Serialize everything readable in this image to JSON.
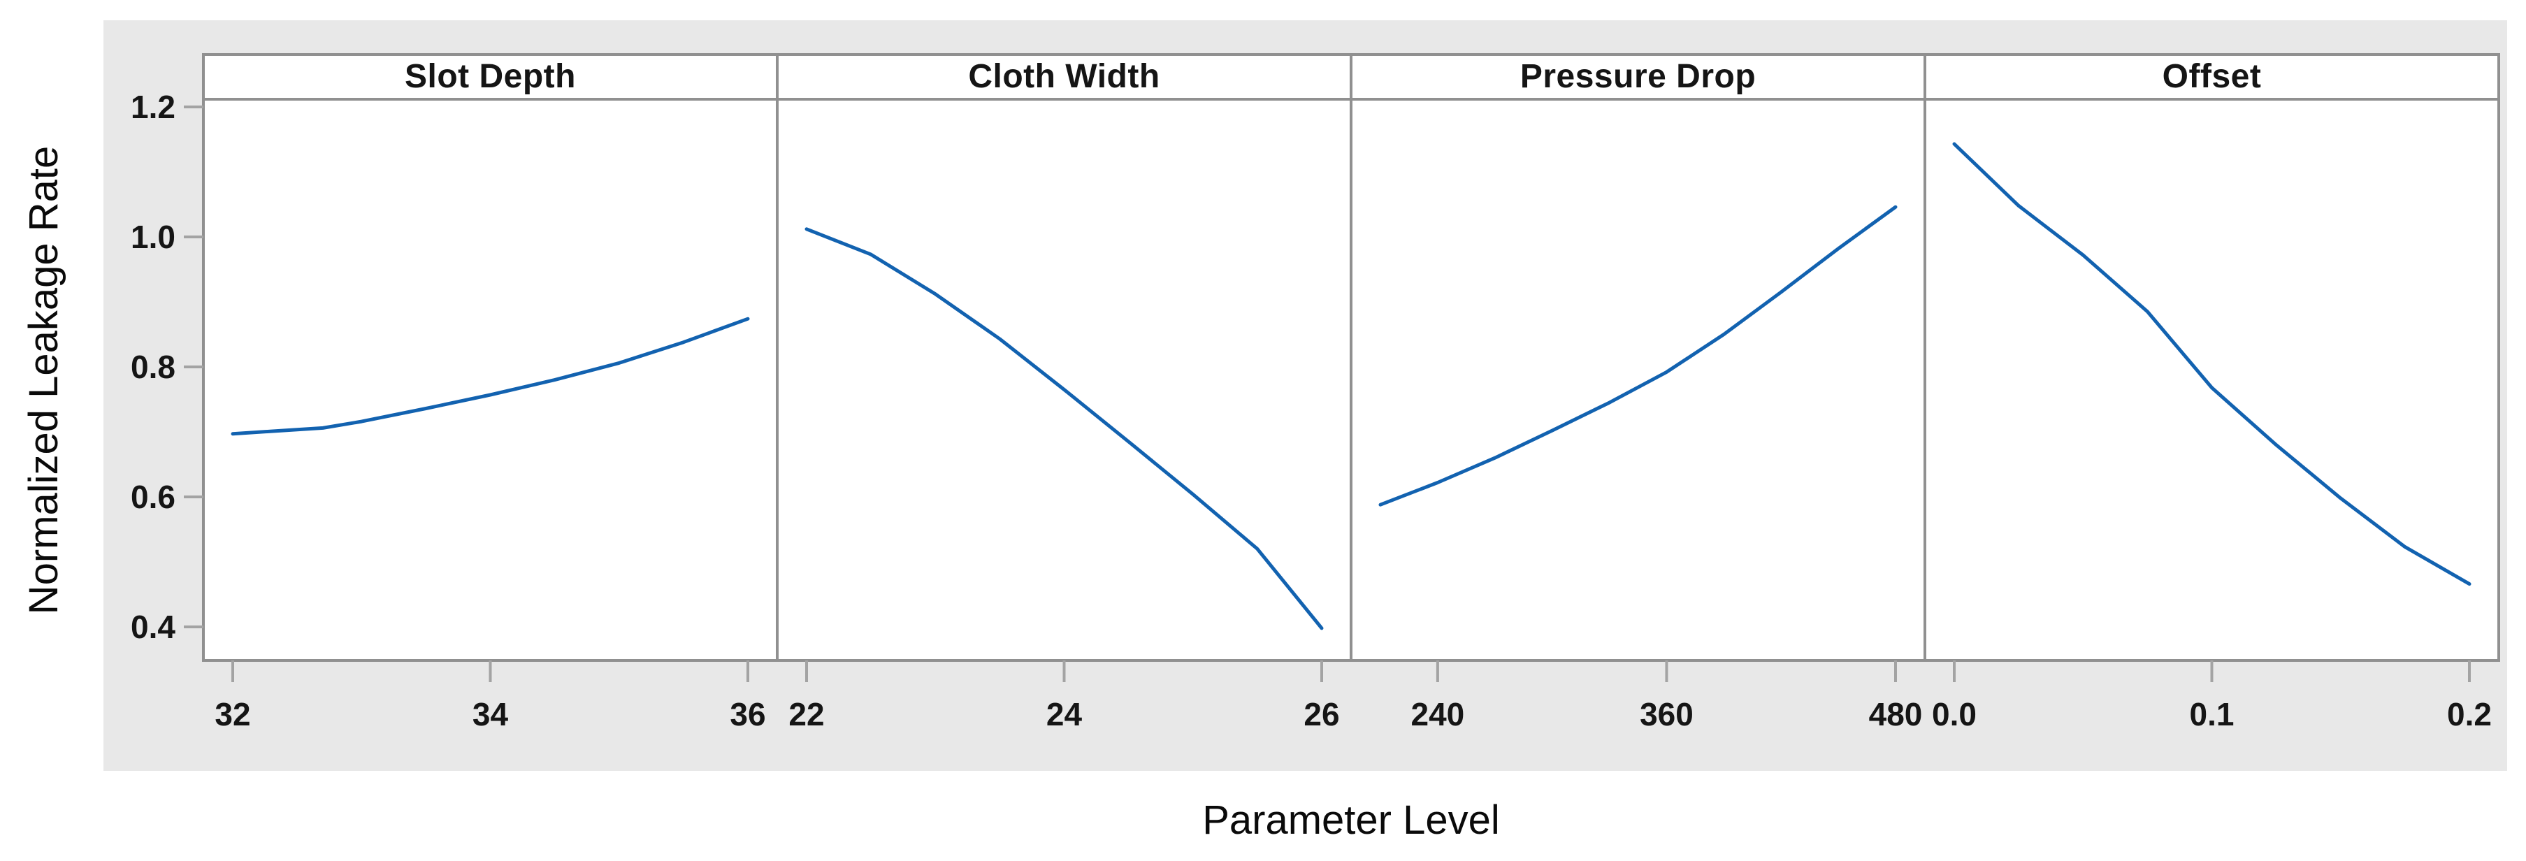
{
  "figure": {
    "kind": "main-effects-plot",
    "x_axis_label": "Parameter Level",
    "y_axis_label": "Normalized Leakage Rate"
  },
  "colors": {
    "line": "#1262b0",
    "band_background": "#e8e8e8",
    "panel_background": "#ffffff",
    "border": "#909090",
    "tick_mark": "#a3a3a3",
    "text": "#151515"
  },
  "chart_data": {
    "type": "line",
    "subtype": "main-effects-plot-4-panels",
    "title": "",
    "xlabel": "Parameter Level",
    "ylabel": "Normalized Leakage Rate",
    "ylim": [
      0.348,
      1.212
    ],
    "grid": "off",
    "legend": "none",
    "y_ticks": [
      {
        "label": "1.2",
        "value": 1.2
      },
      {
        "label": "1.0",
        "value": 1.0
      },
      {
        "label": "0.8",
        "value": 0.8
      },
      {
        "label": "0.6",
        "value": 0.6
      },
      {
        "label": "0.4",
        "value": 0.4
      }
    ],
    "panels": [
      {
        "title": "Slot Depth",
        "x_range": [
          32,
          36
        ],
        "x_ticks": [
          {
            "label": "32",
            "value": 32
          },
          {
            "label": "34",
            "value": 34
          },
          {
            "label": "36",
            "value": 36
          }
        ],
        "points": [
          [
            32,
            0.697
          ],
          [
            32.3,
            0.701
          ],
          [
            32.7,
            0.706
          ],
          [
            33,
            0.716
          ],
          [
            33.5,
            0.736
          ],
          [
            34,
            0.757
          ],
          [
            34.5,
            0.78
          ],
          [
            35,
            0.806
          ],
          [
            35.5,
            0.838
          ],
          [
            36,
            0.874
          ]
        ]
      },
      {
        "title": "Cloth Width",
        "x_range": [
          22,
          26
        ],
        "x_ticks": [
          {
            "label": "22",
            "value": 22
          },
          {
            "label": "24",
            "value": 24
          },
          {
            "label": "26",
            "value": 26
          }
        ],
        "points": [
          [
            22,
            1.012
          ],
          [
            22.5,
            0.973
          ],
          [
            23,
            0.912
          ],
          [
            23.5,
            0.843
          ],
          [
            24,
            0.765
          ],
          [
            24.5,
            0.685
          ],
          [
            25,
            0.604
          ],
          [
            25.5,
            0.52
          ],
          [
            26,
            0.398
          ]
        ]
      },
      {
        "title": "Pressure Drop",
        "x_range": [
          210,
          480
        ],
        "x_ticks": [
          {
            "label": "240",
            "value": 240
          },
          {
            "label": "360",
            "value": 360
          },
          {
            "label": "480",
            "value": 480
          }
        ],
        "points": [
          [
            210,
            0.588
          ],
          [
            240,
            0.622
          ],
          [
            270,
            0.66
          ],
          [
            300,
            0.702
          ],
          [
            330,
            0.745
          ],
          [
            360,
            0.792
          ],
          [
            390,
            0.85
          ],
          [
            420,
            0.915
          ],
          [
            450,
            0.982
          ],
          [
            480,
            1.046
          ]
        ]
      },
      {
        "title": "Offset",
        "x_range": [
          0,
          0.2
        ],
        "x_ticks": [
          {
            "label": "0.0",
            "value": 0.0
          },
          {
            "label": "0.1",
            "value": 0.1
          },
          {
            "label": "0.2",
            "value": 0.2
          }
        ],
        "points": [
          [
            0,
            1.143
          ],
          [
            0.025,
            1.048
          ],
          [
            0.05,
            0.972
          ],
          [
            0.075,
            0.885
          ],
          [
            0.1,
            0.768
          ],
          [
            0.125,
            0.68
          ],
          [
            0.15,
            0.598
          ],
          [
            0.175,
            0.523
          ],
          [
            0.2,
            0.466
          ]
        ]
      }
    ]
  }
}
